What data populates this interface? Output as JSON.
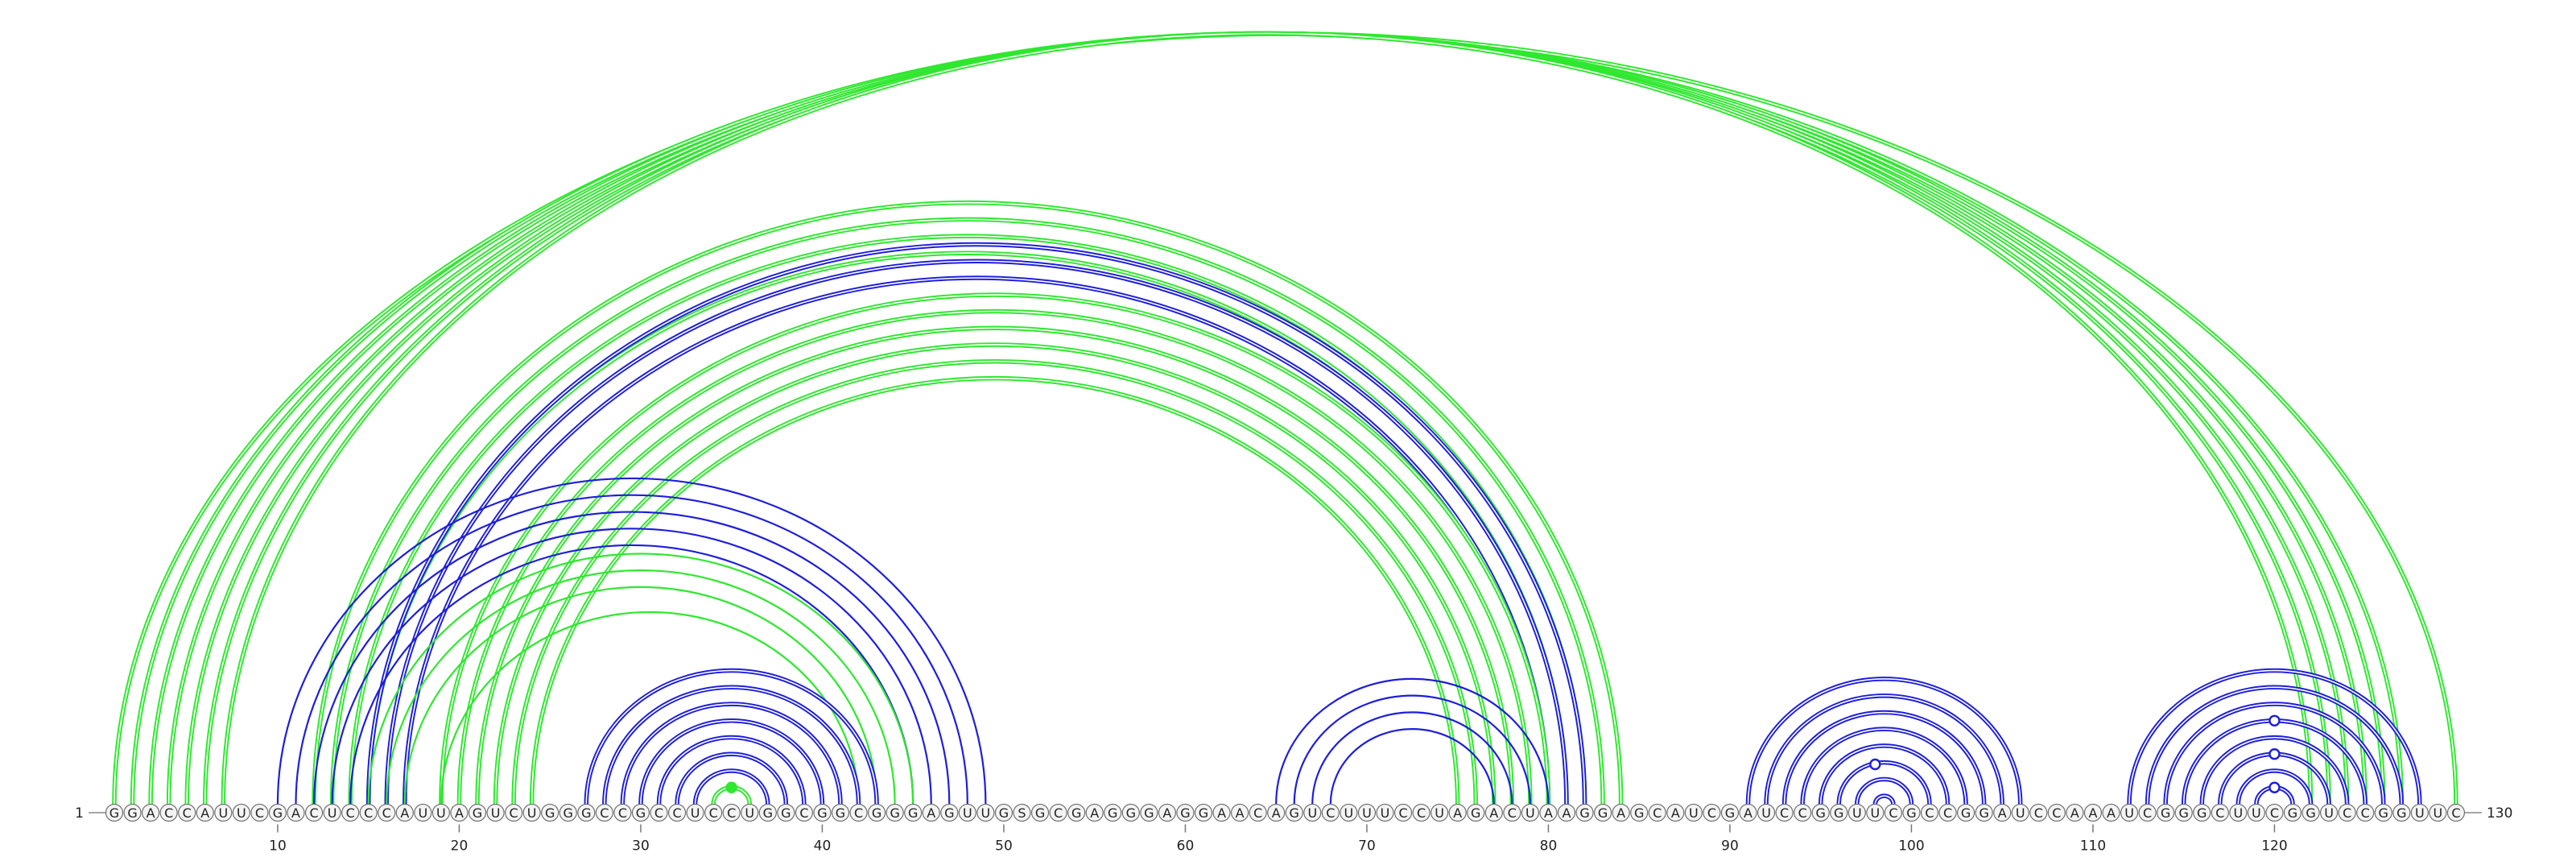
{
  "sequence": {
    "start_label": "1",
    "end_label": "130",
    "letters": "GGACCAUUCGACUCCCAUUAGUCUGGGCCGCCUCCUGGCGGCGGGAGUUGSGCGAGGGAGGAACAGUCUUUCCUAGACUAAGGAGCAUCGAUCCGGUUCGCCGGAUCCAAAUCGGGCUUCGGUCCGGUUC",
    "ticks": [
      "10",
      "20",
      "30",
      "40",
      "50",
      "60",
      "70",
      "80",
      "90",
      "100",
      "110",
      "120"
    ]
  },
  "colors": {
    "green": "#2ee82e",
    "blue": "#1e1edc",
    "backbone": "#888888",
    "nucleotide_fill": "#f4f4f4",
    "nucleotide_stroke": "#707070",
    "text": "#222222"
  },
  "arcs": [
    {
      "color": "green",
      "style": "double",
      "pairs": [
        [
          1,
          130
        ],
        [
          2,
          127
        ],
        [
          3,
          126
        ],
        [
          4,
          125
        ],
        [
          5,
          124
        ],
        [
          6,
          123
        ],
        [
          7,
          122
        ]
      ]
    },
    {
      "color": "green",
      "style": "double",
      "pairs": [
        [
          12,
          84
        ],
        [
          13,
          83
        ],
        [
          14,
          82
        ],
        [
          15,
          81
        ]
      ]
    },
    {
      "color": "blue",
      "style": "double",
      "pairs": [
        [
          15,
          82
        ],
        [
          16,
          81
        ],
        [
          17,
          80
        ]
      ]
    },
    {
      "color": "green",
      "style": "double",
      "pairs": [
        [
          19,
          80
        ],
        [
          20,
          79
        ],
        [
          21,
          78
        ],
        [
          22,
          77
        ],
        [
          23,
          76
        ],
        [
          24,
          75
        ]
      ]
    },
    {
      "color": "blue",
      "style": "single",
      "pairs": [
        [
          10,
          49
        ],
        [
          11,
          48
        ],
        [
          12,
          47
        ],
        [
          13,
          46
        ],
        [
          14,
          45
        ]
      ]
    },
    {
      "color": "green",
      "style": "single",
      "pairs": [
        [
          15,
          45
        ],
        [
          16,
          44
        ],
        [
          17,
          43
        ],
        [
          19,
          42
        ]
      ]
    },
    {
      "color": "blue",
      "style": "double",
      "pairs": [
        [
          27,
          43
        ],
        [
          28,
          42
        ],
        [
          29,
          41
        ],
        [
          30,
          40
        ],
        [
          31,
          39
        ],
        [
          32,
          38
        ],
        [
          33,
          37
        ]
      ]
    },
    {
      "color": "green",
      "style": "double",
      "pairs": [
        [
          34,
          36
        ]
      ]
    },
    {
      "color": "blue",
      "style": "single",
      "pairs": [
        [
          65,
          80
        ],
        [
          66,
          79
        ],
        [
          67,
          78
        ],
        [
          68,
          77
        ]
      ]
    },
    {
      "color": "blue",
      "style": "double",
      "pairs": [
        [
          91,
          106
        ],
        [
          92,
          105
        ],
        [
          93,
          104
        ],
        [
          94,
          103
        ],
        [
          95,
          102
        ],
        [
          96,
          101
        ],
        [
          97,
          100
        ],
        [
          98,
          99
        ]
      ]
    },
    {
      "color": "blue",
      "style": "double",
      "pairs": [
        [
          112,
          128
        ],
        [
          113,
          127
        ],
        [
          114,
          126
        ],
        [
          115,
          125
        ],
        [
          116,
          124
        ],
        [
          117,
          123
        ],
        [
          118,
          122
        ],
        [
          119,
          121
        ]
      ]
    }
  ],
  "markers": [
    {
      "pos": 35,
      "color": "green",
      "filled": true
    },
    {
      "pos": 98,
      "color": "blue",
      "filled": false
    },
    {
      "pos": 120,
      "color": "blue",
      "filled": false
    },
    {
      "pos": 120,
      "color": "blue",
      "filled": false
    },
    {
      "pos": 120,
      "color": "blue",
      "filled": false
    }
  ]
}
